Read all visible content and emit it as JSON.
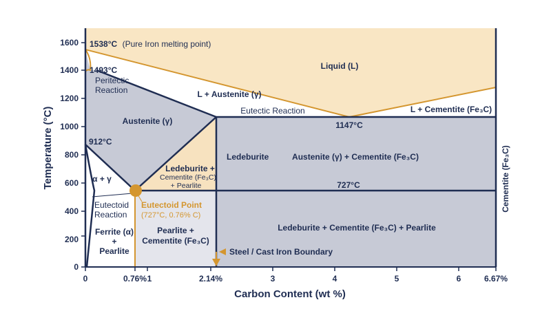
{
  "axes": {
    "x_title": "Carbon Content (wt %)",
    "y_title": "Temperature (°C)",
    "right_title": "Cementite (Fe₃C)",
    "x_ticks": [
      "0",
      "0.76%",
      "1",
      "2.14%",
      "3",
      "4",
      "5",
      "6",
      "6.67%"
    ],
    "y_ticks": [
      "0",
      "200",
      "400",
      "600",
      "800",
      "1000",
      "1200",
      "1400",
      "1600"
    ]
  },
  "labels": {
    "melting_temp": "1538°C",
    "melting_note": "(Pure Iron melting point)",
    "peritectic_temp": "1493°C",
    "peritectic_line1": "Peritectic",
    "peritectic_line2": "Reaction",
    "liquid": "Liquid (L)",
    "l_austenite": "L + Austenite (γ)",
    "eutectic_reaction": "Eutectic Reaction",
    "l_cementite": "L + Cementite (Fe₃C)",
    "eutectic_temp": "1147°C",
    "austenite": "Austenite (γ)",
    "temp_912": "912°C",
    "alpha_gamma": "α + γ",
    "ledeburite": "Ledeburite",
    "aust_cementite": "Austenite (γ) + Cementite (Fe₃C)",
    "led_line1": "Ledeburite +",
    "led_line2": "Cementite (Fe₃C)",
    "led_line3": "+ Pearlite",
    "temp_727": "727°C",
    "eutectoid_line1": "Eutectoid",
    "eutectoid_line2": "Reaction",
    "eutectoid_point": "Eutectoid Point",
    "eutectoid_coords": "(727°C, 0.76% C)",
    "ferrite_line1": "Ferrite (α)",
    "ferrite_line2": "+",
    "ferrite_line3": "Pearlite",
    "pearlite_line1": "Pearlite +",
    "pearlite_line2": "Cementite (Fe₃C)",
    "led_cem_pearlite": "Ledeburite + Cementite (Fe₃C) + Pearlite",
    "boundary": "Steel / Cast Iron Boundary"
  },
  "colors": {
    "navy": "#1f2d52",
    "gray": "#c7cad6",
    "light_gray": "#e4e5ec",
    "peach": "#f7e2bf",
    "light_peach": "#f9e6c4",
    "orange": "#d4962f"
  }
}
